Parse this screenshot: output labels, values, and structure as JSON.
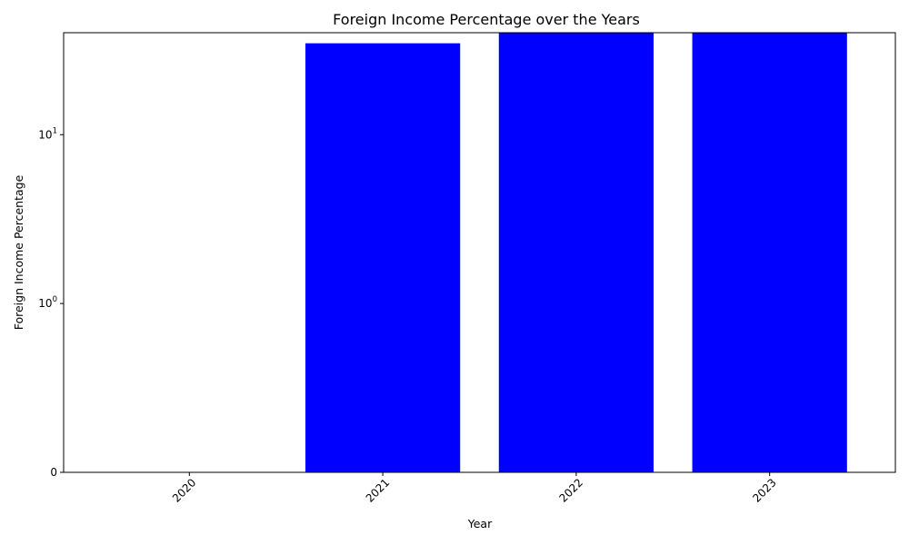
{
  "chart_data": {
    "type": "bar",
    "title": "Foreign Income Percentage over the Years",
    "xlabel": "Year",
    "ylabel": "Foreign Income Percentage",
    "categories": [
      "2020",
      "2021",
      "2022",
      "2023"
    ],
    "values": [
      0,
      34.8,
      40.2,
      40.2
    ],
    "bar_color": "#0000ff",
    "y_scale": "symlog",
    "y_ticks": [
      {
        "value": 0,
        "base": "0",
        "exp": ""
      },
      {
        "value": 1,
        "base": "10",
        "exp": "0"
      },
      {
        "value": 10,
        "base": "10",
        "exp": "1"
      }
    ],
    "ylim": [
      0,
      40.2
    ],
    "grid": false,
    "legend": false
  }
}
